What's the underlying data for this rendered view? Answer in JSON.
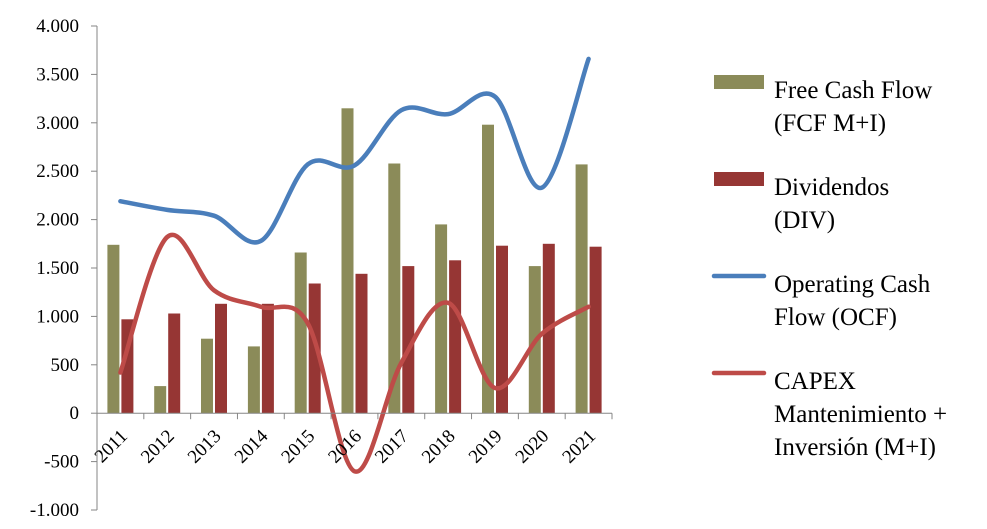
{
  "chart_data": {
    "type": "bar",
    "categories": [
      "2011",
      "2012",
      "2013",
      "2014",
      "2015",
      "2016",
      "2017",
      "2018",
      "2019",
      "2020",
      "2021"
    ],
    "ylim": [
      -1000,
      4000
    ],
    "yticks": [
      -1000,
      -500,
      0,
      500,
      1000,
      1500,
      2000,
      2500,
      3000,
      3500,
      4000
    ],
    "ytick_labels": [
      "-1.000",
      "-500",
      "0",
      "500",
      "1.000",
      "1.500",
      "2.000",
      "2.500",
      "3.000",
      "3.500",
      "4.000"
    ],
    "grid": false,
    "legend_position": "right",
    "series": [
      {
        "name": "Free Cash Flow (FCF M+I)",
        "legend_lines": [
          "Free Cash Flow",
          "(FCF M+I)"
        ],
        "kind": "bar",
        "color": "#8b8b59",
        "values": [
          1740,
          280,
          770,
          690,
          1660,
          3150,
          2580,
          1950,
          2980,
          1520,
          2570
        ]
      },
      {
        "name": "Dividendos (DIV)",
        "legend_lines": [
          "Dividendos",
          "(DIV)"
        ],
        "kind": "bar",
        "color": "#963634",
        "values": [
          970,
          1030,
          1130,
          1130,
          1340,
          1440,
          1520,
          1580,
          1730,
          1750,
          1720
        ]
      },
      {
        "name": "Operating Cash Flow (OCF)",
        "legend_lines": [
          "Operating Cash",
          "Flow (OCF)"
        ],
        "kind": "line",
        "color": "#4a7ebb",
        "values": [
          2190,
          2100,
          2040,
          1780,
          2570,
          2560,
          3130,
          3090,
          3270,
          2330,
          3660
        ]
      },
      {
        "name": "CAPEX Mantenimiento + Inversión (M+I)",
        "legend_lines": [
          "CAPEX",
          "Mantenimiento +",
          "Inversión (M+I)"
        ],
        "kind": "line",
        "color": "#be4b48",
        "values": [
          420,
          1820,
          1270,
          1100,
          930,
          -600,
          520,
          1140,
          260,
          820,
          1100
        ]
      }
    ]
  }
}
